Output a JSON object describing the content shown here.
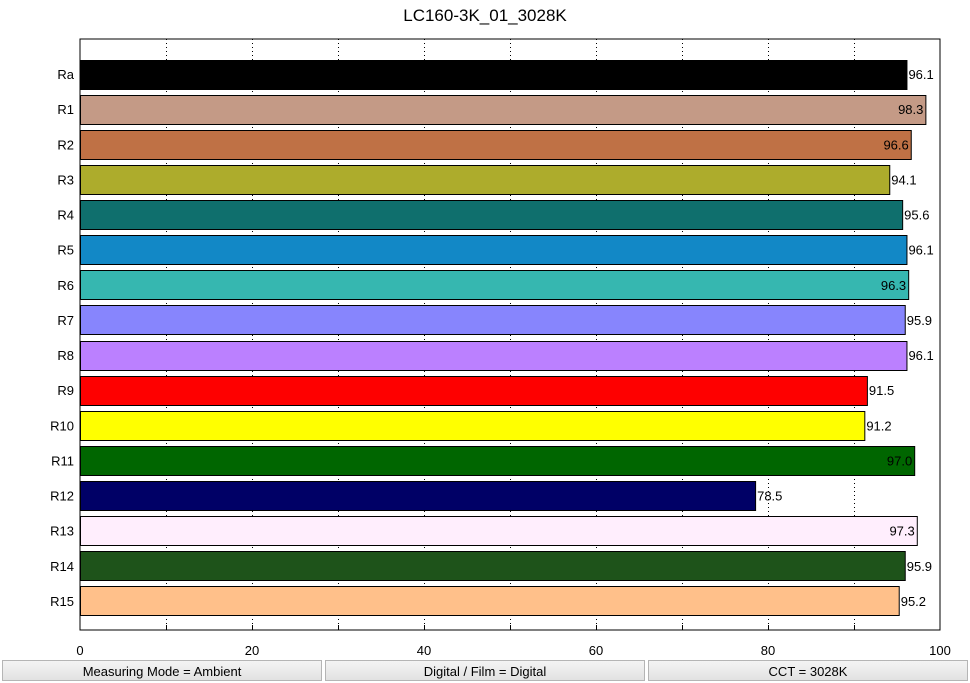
{
  "chart_data": {
    "type": "bar",
    "orientation": "horizontal",
    "title": "LC160-3K_01_3028K",
    "xlabel": "",
    "ylabel": "",
    "xlim": [
      0,
      100
    ],
    "x_ticks": [
      "0",
      "20",
      "40",
      "60",
      "80",
      "100"
    ],
    "grid": "vertical dotted",
    "categories": [
      "Ra",
      "R1",
      "R2",
      "R3",
      "R4",
      "R5",
      "R6",
      "R7",
      "R8",
      "R9",
      "R10",
      "R11",
      "R12",
      "R13",
      "R14",
      "R15"
    ],
    "values": [
      96.1,
      98.3,
      96.6,
      94.1,
      95.6,
      96.1,
      96.3,
      95.9,
      96.1,
      91.5,
      91.2,
      97.0,
      78.5,
      97.3,
      95.9,
      95.2
    ],
    "labels": [
      "96.1",
      "98.3",
      "96.6",
      "94.1",
      "95.6",
      "96.1",
      "96.3",
      "95.9",
      "96.1",
      "91.5",
      "91.2",
      "97.0",
      "78.5",
      "97.3",
      "95.9",
      "95.2"
    ],
    "colors": [
      "#000000",
      "#c49a86",
      "#bf7145",
      "#adac2c",
      "#0f6f6d",
      "#1288c6",
      "#36b7b0",
      "#8785fd",
      "#bb80ff",
      "#fe0000",
      "#ffff00",
      "#006600",
      "#000066",
      "#ffeefd",
      "#1e531a",
      "#ffc08a"
    ],
    "label_inside": [
      false,
      true,
      true,
      false,
      false,
      false,
      true,
      false,
      false,
      false,
      false,
      true,
      false,
      true,
      false,
      false
    ]
  },
  "footer": {
    "measuring_mode": "Measuring Mode = Ambient",
    "digital_film": "Digital / Film = Digital",
    "cct": "CCT = 3028K"
  }
}
